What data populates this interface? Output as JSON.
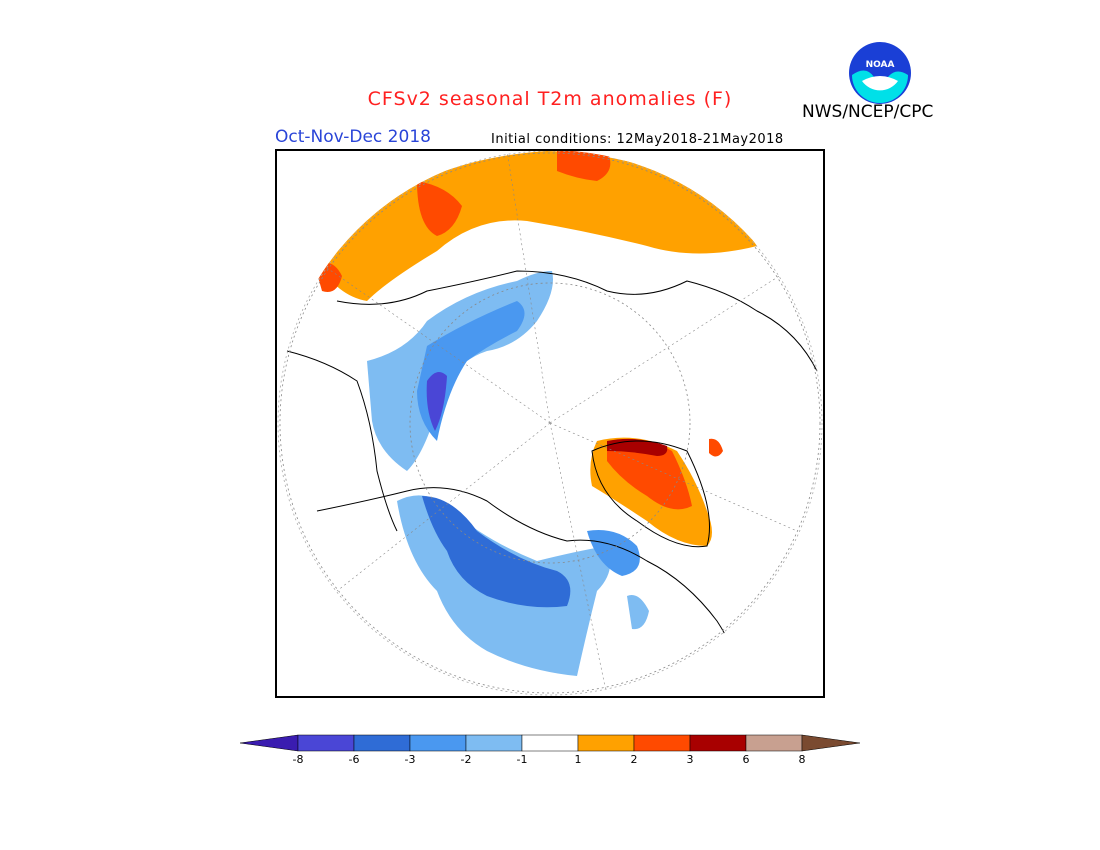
{
  "header": {
    "title": "CFSv2 seasonal T2m anomalies (F)",
    "season": "Oct-Nov-Dec 2018",
    "initial_conditions": "Initial conditions: 12May2018-21May2018",
    "agency": "NWS/NCEP/CPC",
    "logo_text": "NOAA"
  },
  "legend": {
    "unit": "F",
    "ticks": [
      "-8",
      "-6",
      "-3",
      "-2",
      "-1",
      "1",
      "2",
      "3",
      "6",
      "8"
    ],
    "colors": [
      "#3a1cb0",
      "#4a46d6",
      "#2f6cd6",
      "#4a98f0",
      "#7ebcf2",
      "#ffffff",
      "#ffa100",
      "#ff4a00",
      "#a80000",
      "#c8a090",
      "#7a4a30"
    ]
  },
  "map": {
    "projection": "north-polar-stereographic",
    "colors": {
      "warm1": "#ffa100",
      "warm2": "#ff4a00",
      "warm3": "#a80000",
      "cool1": "#7ebcf2",
      "cool2": "#4a98f0",
      "cool3": "#2f6cd6",
      "cool4": "#4a46d6"
    }
  }
}
